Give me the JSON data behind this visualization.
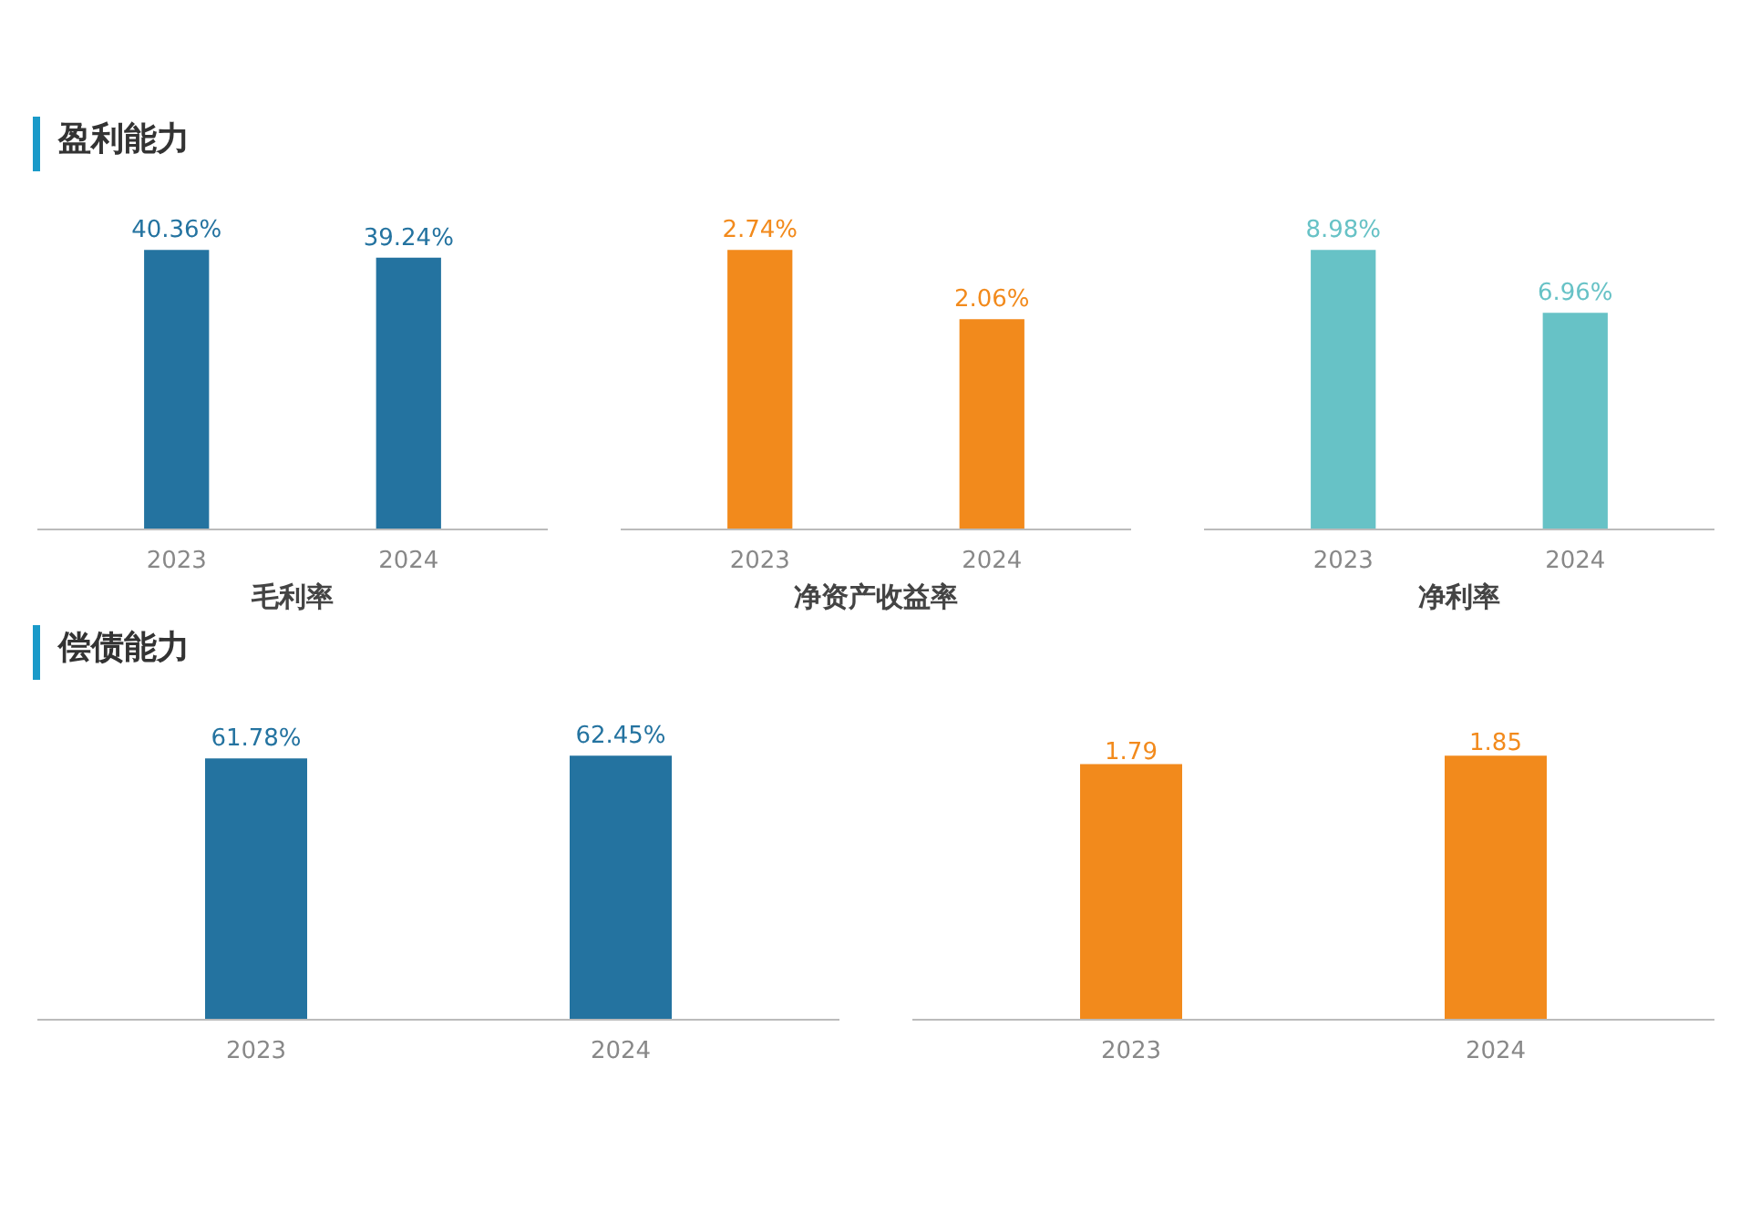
{
  "chart_data": [
    {
      "type": "bar",
      "title": "盈利能力",
      "xlabel": "毛利率",
      "categories": [
        "2023",
        "2024"
      ],
      "values": [
        40.36,
        39.24
      ],
      "value_labels": [
        "40.36%",
        "39.24%"
      ],
      "color": "#2473a0",
      "grid": false
    },
    {
      "type": "bar",
      "xlabel": "净资产收益率",
      "categories": [
        "2023",
        "2024"
      ],
      "values": [
        2.74,
        2.06
      ],
      "value_labels": [
        "2.74%",
        "2.06%"
      ],
      "color": "#f28a1c",
      "grid": false
    },
    {
      "type": "bar",
      "xlabel": "净利率",
      "categories": [
        "2023",
        "2024"
      ],
      "values": [
        8.98,
        6.96
      ],
      "value_labels": [
        "8.98%",
        "6.96%"
      ],
      "color": "#67c2c6",
      "grid": false
    },
    {
      "type": "bar",
      "title": "偿债能力",
      "categories": [
        "2023",
        "2024"
      ],
      "values": [
        61.78,
        62.45
      ],
      "value_labels": [
        "61.78%",
        "62.45%"
      ],
      "color": "#2473a0",
      "grid": false
    },
    {
      "type": "bar",
      "categories": [
        "2023",
        "2024"
      ],
      "values": [
        1.79,
        1.85
      ],
      "value_labels": [
        "1.79",
        "1.85"
      ],
      "color": "#f28a1c",
      "grid": false
    }
  ]
}
